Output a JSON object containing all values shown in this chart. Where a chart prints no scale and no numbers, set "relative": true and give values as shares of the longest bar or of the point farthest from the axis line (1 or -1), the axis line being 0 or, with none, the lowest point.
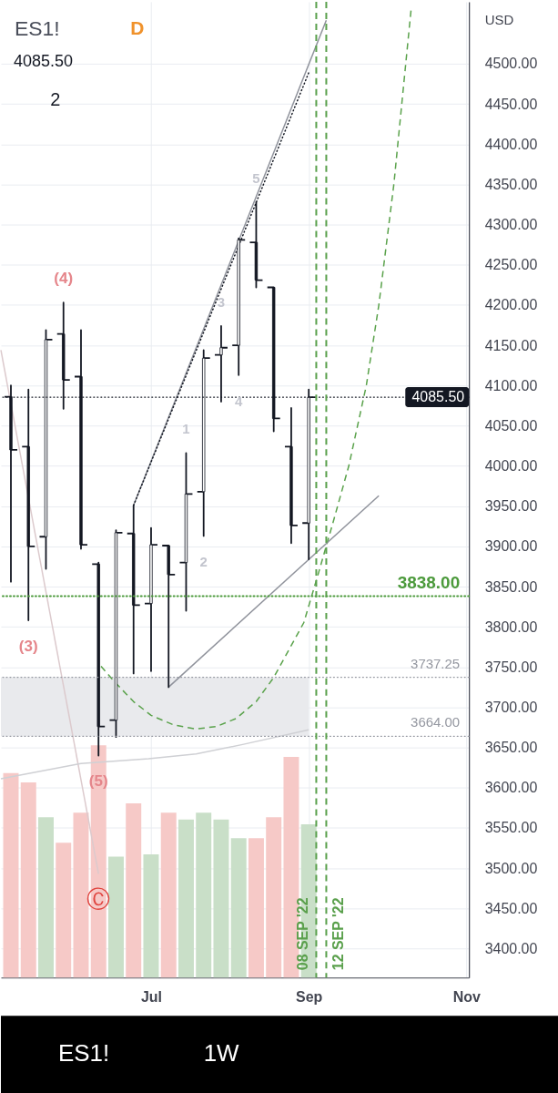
{
  "chart_data": [
    {
      "type": "candlestick",
      "title": "ES1!",
      "subtitle": "1W",
      "ylabel": "USD",
      "color": "#131722",
      "x": [
        "2022-05-09",
        "2022-05-16",
        "2022-05-23",
        "2022-05-30",
        "2022-06-06",
        "2022-06-13",
        "2022-06-20",
        "2022-06-27",
        "2022-07-04",
        "2022-07-11",
        "2022-07-18",
        "2022-07-25",
        "2022-08-01",
        "2022-08-08",
        "2022-08-15",
        "2022-08-22",
        "2022-08-29",
        "2022-09-05"
      ],
      "ohlc": [
        [
          4086,
          4100,
          3856,
          4020
        ],
        [
          4024,
          4095,
          3808,
          3900
        ],
        [
          3912,
          4169,
          3872,
          4157
        ],
        [
          4164,
          4203,
          4071,
          4107
        ],
        [
          4111,
          4169,
          3897,
          3902
        ],
        [
          3878,
          3880,
          3640,
          3676
        ],
        [
          3684,
          3920,
          3663,
          3917
        ],
        [
          3916,
          3951,
          3742,
          3827
        ],
        [
          3829,
          3923,
          3745,
          3902
        ],
        [
          3901,
          3901,
          3725,
          3865
        ],
        [
          3880,
          4016,
          3820,
          3965
        ],
        [
          3968,
          4144,
          3913,
          4134
        ],
        [
          4138,
          4174,
          4080,
          4147
        ],
        [
          4150,
          4283,
          4113,
          4281
        ],
        [
          4278,
          4328,
          4222,
          4231
        ],
        [
          4222,
          4222,
          4043,
          4059
        ],
        [
          4024,
          4072,
          3904,
          3926
        ],
        [
          3929,
          4095,
          3884,
          4085.5
        ]
      ],
      "series": [
        {
          "type": "line",
          "x": [
            "2022-05-05",
            "2022-06-13"
          ],
          "values": [
            4144,
            3493
          ],
          "color": "#dccacd",
          "line_style": "solid"
        },
        {
          "type": "line",
          "x": [
            "2022-05-05",
            "2022-06-06",
            "2022-07-03",
            "2022-07-22",
            "2022-08-10",
            "2022-09-05"
          ],
          "values": [
            3611,
            3630,
            3636,
            3642,
            3654,
            3672
          ],
          "color": "#cfd0d4",
          "line_style": "solid"
        },
        {
          "type": "line",
          "x": [
            "2022-06-14",
            "2022-06-19",
            "2022-06-27",
            "2022-07-04",
            "2022-07-13",
            "2022-07-22",
            "2022-07-30",
            "2022-08-07",
            "2022-08-15",
            "2022-08-22",
            "2022-09-03",
            "2022-09-09",
            "2022-09-15",
            "2022-09-21",
            "2022-09-28",
            "2022-10-03",
            "2022-10-09",
            "2022-10-16"
          ],
          "values": [
            3751,
            3733,
            3707,
            3690,
            3678,
            3673,
            3676,
            3686,
            3707,
            3737,
            3805,
            3868,
            3933,
            4000,
            4100,
            4200,
            4350,
            4571
          ],
          "color": "#5aa24b",
          "line_style": "dashed"
        },
        {
          "type": "line",
          "x": [
            "2022-06-27",
            "2022-09-12"
          ],
          "values": [
            3951,
            4554
          ],
          "color": "#8f929b",
          "line_style": "solid"
        },
        {
          "type": "line",
          "x": [
            "2022-06-27",
            "2022-09-05"
          ],
          "values": [
            3951,
            4489
          ],
          "color": "#131722",
          "line_style": "dotted"
        },
        {
          "type": "line",
          "x": [
            "2022-07-11",
            "2022-10-03"
          ],
          "values": [
            3725,
            3963
          ],
          "color": "#8f929b",
          "line_style": "solid"
        }
      ],
      "xlim": [
        "2022-05-05",
        "2022-11-08"
      ],
      "xticks": [
        {
          "value": "2022-07-04",
          "label": "Jul"
        },
        {
          "value": "2022-09-05",
          "label": "Sep"
        },
        {
          "value": "2022-11-07",
          "label": "Nov"
        }
      ],
      "ylim": [
        3364,
        4577
      ],
      "yticks": [
        {
          "value": 3400,
          "label": "3400.00"
        },
        {
          "value": 3450,
          "label": "3450.00"
        },
        {
          "value": 3500,
          "label": "3500.00"
        },
        {
          "value": 3550,
          "label": "3550.00"
        },
        {
          "value": 3600,
          "label": "3600.00"
        },
        {
          "value": 3650,
          "label": "3650.00"
        },
        {
          "value": 3700,
          "label": "3700.00"
        },
        {
          "value": 3750,
          "label": "3750.00"
        },
        {
          "value": 3800,
          "label": "3800.00"
        },
        {
          "value": 3850,
          "label": "3850.00"
        },
        {
          "value": 3900,
          "label": "3900.00"
        },
        {
          "value": 3950,
          "label": "3950.00"
        },
        {
          "value": 4000,
          "label": "4000.00"
        },
        {
          "value": 4050,
          "label": "4050.00"
        },
        {
          "value": 4100,
          "label": "4100.00"
        },
        {
          "value": 4150,
          "label": "4150.00"
        },
        {
          "value": 4200,
          "label": "4200.00"
        },
        {
          "value": 4250,
          "label": "4250.00"
        },
        {
          "value": 4300,
          "label": "4300.00"
        },
        {
          "value": 4350,
          "label": "4350.00"
        },
        {
          "value": 4400,
          "label": "4400.00"
        },
        {
          "value": 4450,
          "label": "4450.00"
        },
        {
          "value": 4500,
          "label": "4500.00"
        }
      ],
      "grid": true,
      "ref_lines": [
        {
          "axis": "y",
          "value": 4085.5,
          "label": "4085.50",
          "color": "#131722",
          "line_style": "dotted"
        },
        {
          "axis": "y",
          "value": 3838,
          "label": "3838.00",
          "color": "#4c9a3c",
          "line_style": "dotted"
        },
        {
          "axis": "y",
          "value": 3737.25,
          "label": "3737.25",
          "color": "#9598a1",
          "line_style": "dotted"
        },
        {
          "axis": "y",
          "value": 3664,
          "label": "3664.00",
          "color": "#9598a1",
          "line_style": "dotted"
        },
        {
          "axis": "x",
          "value": "2022-09-08",
          "label": "08 SEP '22",
          "color": "#5aa04c",
          "line_style": "dashed"
        },
        {
          "axis": "x",
          "value": "2022-09-12",
          "label": "12 SEP '22",
          "color": "#5aa04c",
          "line_style": "dashed"
        }
      ],
      "bands": [
        {
          "axis": "y",
          "from": 3664,
          "to": 3737.25,
          "color": "#e9eaed"
        }
      ],
      "annotations": [
        "4085.50",
        "D",
        "2",
        {
          "text": "(4)",
          "x": "2022-05-30",
          "y": 4203
        },
        {
          "text": "(3)",
          "x": "2022-05-16",
          "y": 3808
        },
        {
          "text": "(5)",
          "x": "2022-06-13",
          "y": 3640
        },
        {
          "text": "Ⓒ",
          "x": "2022-06-13",
          "y": 3493
        },
        {
          "text": "1",
          "x": "2022-07-18",
          "y": 4016
        },
        {
          "text": "2",
          "x": "2022-07-25",
          "y": 3913
        },
        {
          "text": "3",
          "x": "2022-08-01",
          "y": 4174
        },
        {
          "text": "4",
          "x": "2022-08-08",
          "y": 4113
        },
        {
          "text": "5",
          "x": "2022-08-15",
          "y": 4328
        }
      ]
    },
    {
      "type": "bar",
      "relative": true,
      "tick_labels": false,
      "x": [
        "2022-05-09",
        "2022-05-16",
        "2022-05-23",
        "2022-05-30",
        "2022-06-06",
        "2022-06-13",
        "2022-06-20",
        "2022-06-27",
        "2022-07-04",
        "2022-07-11",
        "2022-07-18",
        "2022-07-25",
        "2022-08-01",
        "2022-08-08",
        "2022-08-15",
        "2022-08-22",
        "2022-08-29",
        "2022-09-05"
      ],
      "xlim": [
        "2022-05-05",
        "2022-11-08"
      ],
      "colors": [
        "#f6c9c7",
        "#f6c9c7",
        "#c9dfc8",
        "#f6c9c7",
        "#f6c9c7",
        "#f6c9c7",
        "#c9dfc8",
        "#f6c9c7",
        "#c9dfc8",
        "#f6c9c7",
        "#c9dfc8",
        "#c9dfc8",
        "#c9dfc8",
        "#c9dfc8",
        "#f6c9c7",
        "#f6c9c7",
        "#f6c9c7",
        "#c9dfc8"
      ],
      "values": [
        0.88,
        0.84,
        0.69,
        0.58,
        0.71,
        1,
        0.52,
        0.75,
        0.53,
        0.71,
        0.68,
        0.71,
        0.68,
        0.6,
        0.6,
        0.69,
        0.95,
        0.66
      ]
    }
  ]
}
